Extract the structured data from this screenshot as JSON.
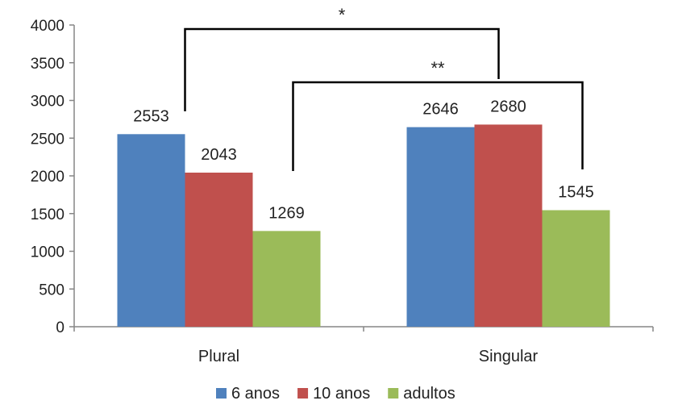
{
  "chart_data": {
    "type": "bar",
    "categories": [
      "Plural",
      "Singular"
    ],
    "series": [
      {
        "name": "6 anos",
        "values": [
          2553,
          2646
        ],
        "color": "#4f81bd"
      },
      {
        "name": "10 anos",
        "values": [
          2043,
          2680
        ],
        "color": "#c0504d"
      },
      {
        "name": "adultos",
        "values": [
          1269,
          1545
        ],
        "color": "#9bbb59"
      }
    ],
    "ylim": [
      0,
      4000
    ],
    "yticks": [
      "0",
      "500",
      "1000",
      "1500",
      "2000",
      "2500",
      "3000",
      "3500",
      "4000"
    ],
    "grid": false,
    "legend": "bottom",
    "significance": [
      {
        "label": "*",
        "from": "Plural 6 anos / 10 anos",
        "to": "Singular 6 anos / 10 anos"
      },
      {
        "label": "**",
        "from": "Plural adultos",
        "to": "Singular adultos"
      }
    ]
  }
}
